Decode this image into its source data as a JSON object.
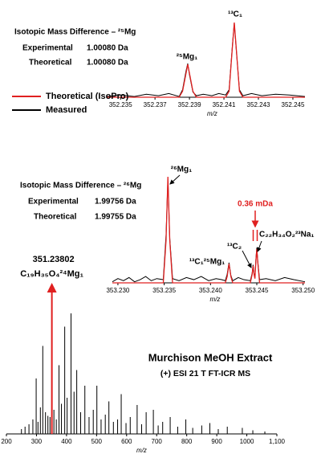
{
  "chart_data": [
    {
      "type": "line",
      "title": "Isotopic Mass Difference – ²⁵Mg",
      "rows": [
        [
          "Experimental",
          "1.00080 Da"
        ],
        [
          "Theoretical",
          "1.00080 Da"
        ]
      ],
      "peak_labels": [
        "²⁵Mg₁",
        "¹³C₁"
      ],
      "x_label": "m/z",
      "xlim": [
        352.2342,
        352.2457
      ],
      "xticks": [
        352.235,
        352.237,
        352.239,
        352.241,
        352.243,
        352.245
      ],
      "ylim": [
        0,
        100
      ],
      "legend": "left",
      "series": [
        {
          "name": "Theoretical (IsoPro)",
          "color": "#e02020",
          "x": [
            352.2342,
            352.2384,
            352.2386,
            352.2388,
            352.2389,
            352.239,
            352.2392,
            352.2394,
            352.2411,
            352.2413,
            352.2415,
            352.2416,
            352.2417,
            352.2419,
            352.2421,
            352.2457
          ],
          "values": [
            0,
            0,
            8,
            32,
            44,
            32,
            8,
            0,
            0,
            8,
            70,
            100,
            70,
            8,
            0,
            0
          ]
        },
        {
          "name": "Measured",
          "color": "#000000",
          "x": [
            352.2342,
            352.235,
            352.2358,
            352.2365,
            352.2372,
            352.2378,
            352.2384,
            352.2386,
            352.2388,
            352.2389,
            352.239,
            352.2392,
            352.2394,
            352.2398,
            352.2403,
            352.2407,
            352.2411,
            352.2413,
            352.2415,
            352.2416,
            352.2417,
            352.2419,
            352.2421,
            352.2426,
            352.2432,
            352.244,
            352.2448,
            352.2457
          ],
          "values": [
            1,
            3,
            1,
            4,
            2,
            5,
            1,
            10,
            35,
            45,
            30,
            7,
            2,
            4,
            2,
            5,
            3,
            10,
            72,
            99,
            68,
            10,
            2,
            5,
            2,
            4,
            3,
            1
          ]
        }
      ]
    },
    {
      "type": "line",
      "title": "Isotopic Mass Difference – ²⁶Mg",
      "rows": [
        [
          "Experimental",
          "1.99756 Da"
        ],
        [
          "Theoretical",
          "1.99755 Da"
        ]
      ],
      "peak_labels": [
        "²⁶Mg₁",
        "¹³C₁²⁵Mg₁",
        "¹³C₂",
        "C₂₂H₃₄O₂²³Na₁"
      ],
      "annotation": "0.36 mDa",
      "x_label": "m/z",
      "xlim": [
        353.2294,
        353.2502
      ],
      "xticks": [
        {
          "value": 353.23,
          "label": "353.230"
        },
        353.235,
        {
          "value": 353.24,
          "label": "353.240"
        },
        353.245,
        {
          "value": 353.25,
          "label": "353.250"
        }
      ],
      "ylim": [
        0,
        100
      ],
      "series": [
        {
          "name": "Theoretical (IsoPro)",
          "color": "#e02020",
          "x": [
            353.2294,
            353.2349,
            353.2352,
            353.2354,
            353.2356,
            353.2359,
            353.2416,
            353.2418,
            353.242,
            353.2422,
            353.2424,
            353.2443,
            353.2445,
            353.2446,
            353.2447,
            353.2448,
            353.2449,
            353.245,
            353.2451,
            353.2453,
            353.2502
          ],
          "values": [
            0,
            0,
            40,
            100,
            40,
            0,
            0,
            6,
            18,
            6,
            0,
            0,
            8,
            16,
            8,
            4,
            20,
            32,
            20,
            0,
            0
          ]
        },
        {
          "name": "Measured",
          "color": "#000000",
          "x": [
            353.2294,
            353.23,
            353.2306,
            353.2312,
            353.2318,
            353.2324,
            353.233,
            353.2336,
            353.2342,
            353.2349,
            353.2352,
            353.2354,
            353.2356,
            353.2359,
            353.2366,
            353.2374,
            353.2382,
            353.239,
            353.2398,
            353.2406,
            353.2412,
            353.2416,
            353.2418,
            353.242,
            353.2422,
            353.2424,
            353.243,
            353.2436,
            353.2443,
            353.2445,
            353.2446,
            353.2447,
            353.2448,
            353.2449,
            353.245,
            353.2451,
            353.2453,
            353.246,
            353.247,
            353.248,
            353.249,
            353.2502
          ],
          "values": [
            1,
            4,
            2,
            5,
            1,
            3,
            6,
            2,
            4,
            3,
            45,
            98,
            42,
            4,
            2,
            5,
            3,
            6,
            2,
            4,
            3,
            2,
            8,
            19,
            7,
            2,
            5,
            3,
            2,
            9,
            17,
            9,
            5,
            22,
            33,
            21,
            3,
            4,
            2,
            5,
            3,
            1
          ]
        }
      ]
    },
    {
      "type": "stem",
      "title": "Murchison MeOH Extract",
      "subtitle": "(+) ESI 21 T FT-ICR MS",
      "annotation_mz": 351.23802,
      "annotation_formula": "C₁₉H₃₅O₄²⁴Mg₁",
      "x_label": "m/z",
      "xlim": [
        200,
        1100
      ],
      "xticks": [
        200,
        300,
        400,
        500,
        600,
        700,
        800,
        900,
        1000,
        {
          "value": 1100,
          "label": "1,100"
        }
      ],
      "ylim": [
        0,
        100
      ],
      "color": "#000000",
      "highlight_color": "#e02020",
      "x": [
        250,
        262,
        275,
        288,
        299,
        305,
        313,
        321,
        330,
        338,
        345,
        351.24,
        358,
        366,
        375,
        383,
        394,
        402,
        415,
        425,
        434,
        447,
        461,
        475,
        489,
        501,
        515,
        529,
        541,
        556,
        570,
        582,
        598,
        612,
        635,
        650,
        665,
        689,
        705,
        720,
        745,
        770,
        797,
        820,
        850,
        877,
        905,
        935,
        985,
        1020,
        1060
      ],
      "values": [
        4,
        6,
        8,
        12,
        46,
        10,
        22,
        73,
        18,
        15,
        14,
        38,
        20,
        12,
        57,
        25,
        89,
        30,
        100,
        35,
        53,
        18,
        40,
        14,
        20,
        40,
        12,
        16,
        27,
        10,
        12,
        33,
        9,
        14,
        24,
        8,
        18,
        20,
        7,
        10,
        14,
        6,
        12,
        5,
        7,
        9,
        4,
        6,
        5,
        3,
        2
      ]
    }
  ]
}
